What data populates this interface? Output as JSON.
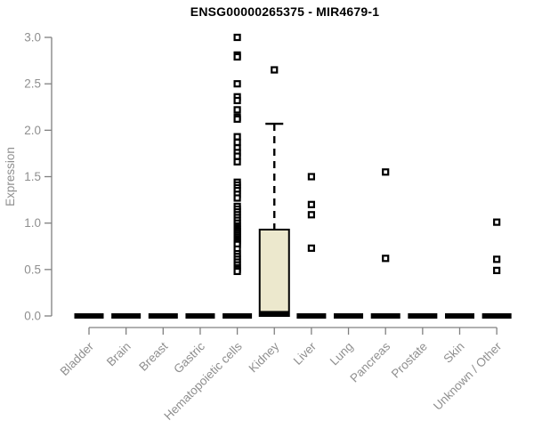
{
  "chart_data": {
    "type": "boxplot",
    "title": "ENSG00000265375 - MIR4679-1",
    "ylabel": "Expression",
    "xlabel": "",
    "ylim": [
      0.0,
      3.0
    ],
    "yticks": [
      "0.0",
      "0.5",
      "1.0",
      "1.5",
      "2.0",
      "2.5",
      "3.0"
    ],
    "grid": false,
    "legend": "none",
    "colors": {
      "box_fill": "#ece8cd",
      "box_stroke": "#000000",
      "axis_line": "#808080",
      "tick_text": "#8f8f8f",
      "title_text": "#000000",
      "outlier_stroke": "#000000",
      "outlier_fill": "#ffffff"
    },
    "categories": [
      "Bladder",
      "Brain",
      "Breast",
      "Gastric",
      "Hematopoietic cells",
      "Kidney",
      "Liver",
      "Lung",
      "Pancreas",
      "Prostate",
      "Skin",
      "Unknown / Other"
    ],
    "series": [
      {
        "category": "Bladder",
        "q1": 0,
        "median": 0,
        "q3": 0,
        "whisker_low": 0,
        "whisker_high": 0,
        "outliers": []
      },
      {
        "category": "Brain",
        "q1": 0,
        "median": 0,
        "q3": 0,
        "whisker_low": 0,
        "whisker_high": 0,
        "outliers": []
      },
      {
        "category": "Breast",
        "q1": 0,
        "median": 0,
        "q3": 0,
        "whisker_low": 0,
        "whisker_high": 0,
        "outliers": []
      },
      {
        "category": "Gastric",
        "q1": 0,
        "median": 0,
        "q3": 0,
        "whisker_low": 0,
        "whisker_high": 0,
        "outliers": []
      },
      {
        "category": "Hematopoietic cells",
        "q1": 0,
        "median": 0,
        "q3": 0,
        "whisker_low": 0,
        "whisker_high": 0,
        "outliers": [
          3.0,
          2.81,
          2.79,
          2.5,
          2.36,
          2.32,
          2.22,
          2.14,
          2.12,
          1.93,
          1.87,
          1.81,
          1.76,
          1.72,
          1.66,
          1.44,
          1.41,
          1.38,
          1.35,
          1.31,
          1.27,
          1.18,
          1.15,
          1.12,
          1.09,
          1.06,
          1.03,
          1.0,
          0.97,
          0.95,
          0.93,
          0.91,
          0.89,
          0.87,
          0.85,
          0.83,
          0.81,
          0.79,
          0.77,
          0.72,
          0.67,
          0.64,
          0.61,
          0.58,
          0.55,
          0.52,
          0.5,
          0.48
        ]
      },
      {
        "category": "Kidney",
        "q1": 0,
        "median": 0.02,
        "q3": 0.93,
        "whisker_low": 0,
        "whisker_high": 2.07,
        "outliers": [
          2.65
        ]
      },
      {
        "category": "Liver",
        "q1": 0,
        "median": 0,
        "q3": 0,
        "whisker_low": 0,
        "whisker_high": 0,
        "outliers": [
          1.5,
          1.2,
          1.09,
          0.73
        ]
      },
      {
        "category": "Lung",
        "q1": 0,
        "median": 0,
        "q3": 0,
        "whisker_low": 0,
        "whisker_high": 0,
        "outliers": []
      },
      {
        "category": "Pancreas",
        "q1": 0,
        "median": 0,
        "q3": 0,
        "whisker_low": 0,
        "whisker_high": 0,
        "outliers": [
          1.55,
          0.62
        ]
      },
      {
        "category": "Prostate",
        "q1": 0,
        "median": 0,
        "q3": 0,
        "whisker_low": 0,
        "whisker_high": 0,
        "outliers": []
      },
      {
        "category": "Skin",
        "q1": 0,
        "median": 0,
        "q3": 0,
        "whisker_low": 0,
        "whisker_high": 0,
        "outliers": []
      },
      {
        "category": "Unknown / Other",
        "q1": 0,
        "median": 0,
        "q3": 0,
        "whisker_low": 0,
        "whisker_high": 0,
        "outliers": [
          1.01,
          0.61,
          0.49
        ]
      }
    ]
  }
}
